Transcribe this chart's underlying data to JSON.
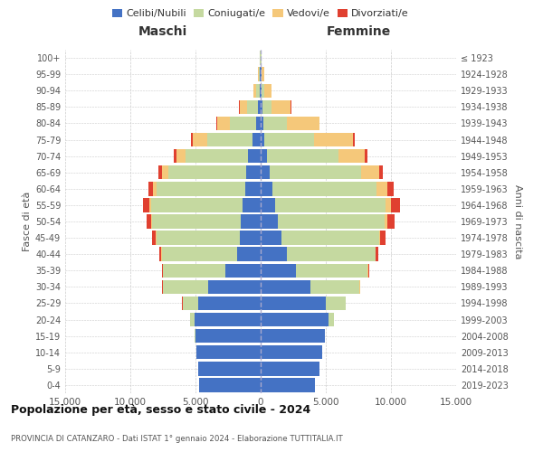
{
  "age_groups": [
    "0-4",
    "5-9",
    "10-14",
    "15-19",
    "20-24",
    "25-29",
    "30-34",
    "35-39",
    "40-44",
    "45-49",
    "50-54",
    "55-59",
    "60-64",
    "65-69",
    "70-74",
    "75-79",
    "80-84",
    "85-89",
    "90-94",
    "95-99",
    "100+"
  ],
  "birth_years": [
    "2019-2023",
    "2014-2018",
    "2009-2013",
    "2004-2008",
    "1999-2003",
    "1994-1998",
    "1989-1993",
    "1984-1988",
    "1979-1983",
    "1974-1978",
    "1969-1973",
    "1964-1968",
    "1959-1963",
    "1954-1958",
    "1949-1953",
    "1944-1948",
    "1939-1943",
    "1934-1938",
    "1929-1933",
    "1924-1928",
    "≤ 1923"
  ],
  "colors": {
    "celibi": "#4472C4",
    "coniugati": "#C5D9A0",
    "vedovi": "#F5C87A",
    "divorziati": "#E04030"
  },
  "males": {
    "celibi": [
      4700,
      4800,
      4900,
      5000,
      5100,
      4800,
      4000,
      2700,
      1800,
      1600,
      1500,
      1400,
      1200,
      1100,
      950,
      600,
      350,
      180,
      90,
      60,
      30
    ],
    "coniugati": [
      2,
      5,
      10,
      50,
      300,
      1200,
      3500,
      4800,
      5800,
      6400,
      6800,
      7000,
      6800,
      6000,
      4800,
      3500,
      2000,
      850,
      250,
      80,
      30
    ],
    "vedovi": [
      0,
      0,
      0,
      1,
      2,
      5,
      10,
      20,
      30,
      70,
      100,
      150,
      250,
      500,
      700,
      1100,
      1000,
      600,
      200,
      60,
      20
    ],
    "divorziati": [
      0,
      0,
      0,
      2,
      5,
      20,
      50,
      80,
      150,
      250,
      350,
      500,
      350,
      250,
      200,
      150,
      60,
      20,
      10,
      5,
      2
    ]
  },
  "females": {
    "celibi": [
      4200,
      4500,
      4700,
      4900,
      5200,
      5000,
      3800,
      2700,
      2000,
      1600,
      1300,
      1100,
      900,
      700,
      500,
      300,
      200,
      120,
      70,
      40,
      20
    ],
    "coniugati": [
      1,
      3,
      10,
      60,
      400,
      1500,
      3800,
      5500,
      6800,
      7500,
      8200,
      8500,
      8000,
      7000,
      5500,
      3800,
      1800,
      700,
      180,
      60,
      20
    ],
    "vedovi": [
      0,
      0,
      0,
      1,
      3,
      8,
      15,
      30,
      50,
      100,
      200,
      400,
      800,
      1400,
      2000,
      3000,
      2500,
      1500,
      600,
      150,
      40
    ],
    "divorziati": [
      0,
      0,
      0,
      2,
      8,
      20,
      50,
      100,
      200,
      350,
      550,
      700,
      500,
      300,
      200,
      100,
      40,
      15,
      8,
      3,
      1
    ]
  },
  "title": "Popolazione per età, sesso e stato civile - 2024",
  "subtitle": "PROVINCIA DI CATANZARO - Dati ISTAT 1° gennaio 2024 - Elaborazione TUTTITALIA.IT",
  "xlabel_left": "Maschi",
  "xlabel_right": "Femmine",
  "ylabel_left": "Fasce di età",
  "ylabel_right": "Anni di nascita",
  "xlim": 15000,
  "legend_labels": [
    "Celibi/Nubili",
    "Coniugati/e",
    "Vedovi/e",
    "Divorziati/e"
  ],
  "background_color": "#ffffff",
  "grid_color": "#cccccc"
}
